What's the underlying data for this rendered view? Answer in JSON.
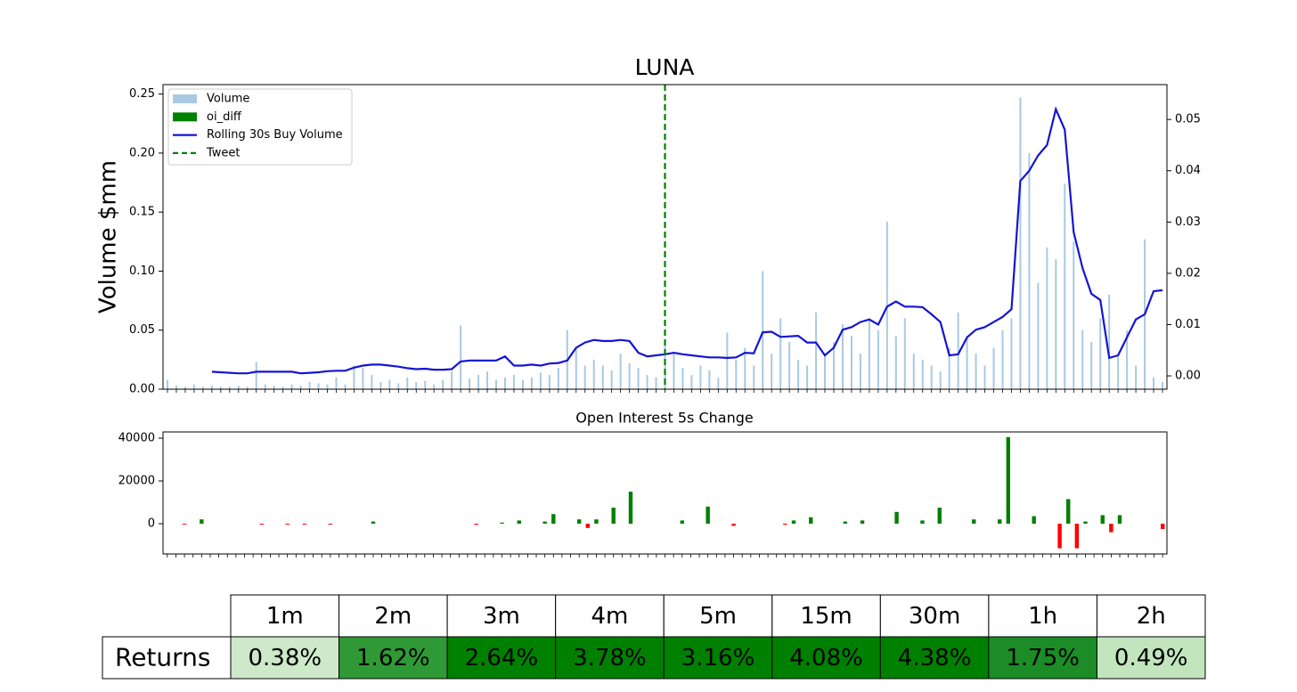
{
  "chart_data": [
    {
      "type": "combo",
      "title": "LUNA",
      "ylabel": "Volume $mm",
      "ylim": [
        0,
        0.258
      ],
      "yticks": [
        {
          "value": 0,
          "label": "0.00"
        },
        {
          "value": 0.05,
          "label": "0.05"
        },
        {
          "value": 0.1,
          "label": "0.10"
        },
        {
          "value": 0.15,
          "label": "0.15"
        },
        {
          "value": 0.2,
          "label": "0.20"
        },
        {
          "value": 0.25,
          "label": "0.25"
        }
      ],
      "y2lim": [
        -0.0026,
        0.0568
      ],
      "y2ticks": [
        {
          "value": 0,
          "label": "0.00"
        },
        {
          "value": 0.01,
          "label": "0.01"
        },
        {
          "value": 0.02,
          "label": "0.02"
        },
        {
          "value": 0.03,
          "label": "0.03"
        },
        {
          "value": 0.04,
          "label": "0.04"
        },
        {
          "value": 0.05,
          "label": "0.05"
        }
      ],
      "legend": "upper left",
      "series": [
        {
          "name": "Volume",
          "type": "bar",
          "color": "#a9c9e2",
          "values": [
            0.008,
            0.003,
            0.002,
            0.004,
            0.002,
            0.003,
            0.002,
            0.002,
            0.003,
            0.002,
            0.023,
            0.004,
            0.003,
            0.002,
            0.004,
            0.003,
            0.006,
            0.005,
            0.004,
            0.01,
            0.004,
            0.02,
            0.018,
            0.012,
            0.006,
            0.008,
            0.005,
            0.01,
            0.006,
            0.007,
            0.004,
            0.008,
            0.015,
            0.054,
            0.009,
            0.012,
            0.015,
            0.008,
            0.01,
            0.012,
            0.008,
            0.01,
            0.014,
            0.012,
            0.018,
            0.05,
            0.035,
            0.02,
            0.025,
            0.02,
            0.016,
            0.03,
            0.022,
            0.018,
            0.012,
            0.01,
            0.04,
            0.03,
            0.018,
            0.012,
            0.02,
            0.016,
            0.01,
            0.048,
            0.025,
            0.035,
            0.02,
            0.1,
            0.03,
            0.06,
            0.04,
            0.025,
            0.02,
            0.065,
            0.03,
            0.04,
            0.055,
            0.045,
            0.03,
            0.06,
            0.05,
            0.142,
            0.045,
            0.06,
            0.03,
            0.025,
            0.02,
            0.015,
            0.035,
            0.065,
            0.045,
            0.03,
            0.02,
            0.035,
            0.05,
            0.06,
            0.247,
            0.2,
            0.09,
            0.12,
            0.11,
            0.174,
            0.125,
            0.05,
            0.04,
            0.06,
            0.08,
            0.03,
            0.05,
            0.02,
            0.127,
            0.01,
            0.006
          ]
        },
        {
          "name": "Rolling 30s Buy Volume",
          "type": "line",
          "axis": "y2",
          "color": "#1414d4",
          "values": [
            null,
            null,
            null,
            null,
            null,
            0.0008,
            0.0007,
            0.0006,
            0.0005,
            0.0005,
            0.0008,
            0.0008,
            0.0008,
            0.0008,
            0.0008,
            0.0005,
            0.0006,
            0.0007,
            0.0009,
            0.001,
            0.001,
            0.0016,
            0.002,
            0.0022,
            0.0022,
            0.002,
            0.0018,
            0.0015,
            0.0013,
            0.0014,
            0.0012,
            0.0012,
            0.0013,
            0.0028,
            0.003,
            0.003,
            0.003,
            0.003,
            0.0038,
            0.002,
            0.002,
            0.0022,
            0.002,
            0.0024,
            0.0025,
            0.003,
            0.0055,
            0.0065,
            0.007,
            0.0068,
            0.0068,
            0.007,
            0.0068,
            0.0045,
            0.0038,
            0.004,
            0.0042,
            0.0045,
            0.0042,
            0.004,
            0.0038,
            0.0036,
            0.0036,
            0.0035,
            0.0036,
            0.0045,
            0.0044,
            0.0085,
            0.0086,
            0.0076,
            0.0077,
            0.0078,
            0.0065,
            0.0065,
            0.004,
            0.0055,
            0.009,
            0.0095,
            0.0105,
            0.011,
            0.01,
            0.0135,
            0.0145,
            0.0135,
            0.0135,
            0.0134,
            0.012,
            0.0105,
            0.004,
            0.0042,
            0.0075,
            0.009,
            0.0095,
            0.0105,
            0.0115,
            0.013,
            0.038,
            0.04,
            0.043,
            0.045,
            0.052,
            0.048,
            0.028,
            0.021,
            0.016,
            0.0148,
            0.0035,
            0.004,
            0.0075,
            0.011,
            0.012,
            0.0165,
            0.0167
          ]
        },
        {
          "name": "Tweet",
          "type": "vline",
          "color": "#008000",
          "at": 56
        }
      ]
    },
    {
      "type": "bar",
      "title": "Open Interest 5s Change",
      "ylim": [
        -14167,
        42917
      ],
      "yticks": [
        0,
        20000,
        40000
      ],
      "series": [
        {
          "name": "oi_diff",
          "color": "#008000",
          "negative_color": "#ff0000",
          "values": [
            null,
            null,
            -300,
            null,
            2000,
            null,
            null,
            null,
            null,
            null,
            null,
            -300,
            null,
            null,
            -300,
            null,
            -300,
            null,
            null,
            -300,
            null,
            null,
            null,
            null,
            1000,
            null,
            null,
            null,
            null,
            null,
            null,
            null,
            null,
            null,
            null,
            null,
            -500,
            null,
            null,
            500,
            null,
            1500,
            null,
            null,
            1000,
            4500,
            null,
            null,
            2000,
            -2000,
            2000,
            null,
            7500,
            null,
            15000,
            null,
            null,
            null,
            null,
            null,
            1500,
            null,
            null,
            8000,
            null,
            null,
            -1000,
            null,
            null,
            null,
            null,
            null,
            -500,
            1500,
            null,
            3000,
            null,
            null,
            null,
            1000,
            null,
            1500,
            null,
            null,
            null,
            5500,
            null,
            null,
            1500,
            null,
            7500,
            null,
            null,
            null,
            2000,
            null,
            null,
            2000,
            40500,
            null,
            null,
            3500,
            null,
            null,
            -11500,
            11500,
            -11500,
            1000,
            null,
            4000,
            -4000,
            4000,
            null,
            null,
            null,
            null,
            -2500
          ]
        }
      ]
    }
  ],
  "table": {
    "header": [
      "1m",
      "2m",
      "3m",
      "4m",
      "5m",
      "15m",
      "30m",
      "1h",
      "2h"
    ],
    "row_label": "Returns",
    "cells": [
      "0.38%",
      "1.62%",
      "2.64%",
      "3.78%",
      "3.16%",
      "4.08%",
      "4.38%",
      "1.75%",
      "0.49%"
    ],
    "colors": [
      "#cde9c9",
      "#2f9a35",
      "#008000",
      "#008000",
      "#008000",
      "#008000",
      "#008000",
      "#1c8d26",
      "#c2e5be"
    ]
  }
}
